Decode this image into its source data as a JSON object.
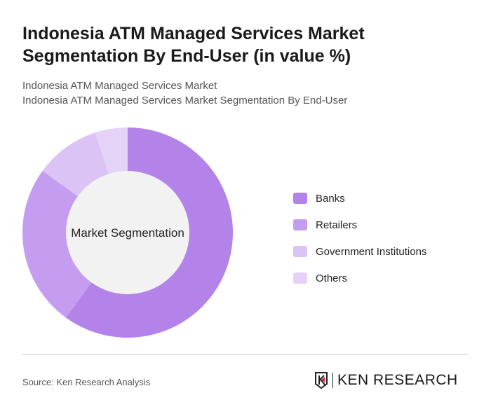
{
  "title": "Indonesia ATM Managed Services Market Segmentation By End-User (in value %)",
  "subtitle1": "Indonesia ATM Managed Services Market",
  "subtitle2": "Indonesia ATM Managed Services Market Segmentation By End-User",
  "source": "Source: Ken Research Analysis",
  "logo_text": "KEN RESEARCH",
  "chart_data": {
    "type": "pie",
    "variant": "donut",
    "center_label": "Market Segmentation",
    "legend_position": "right",
    "categories": [
      "Banks",
      "Retailers",
      "Government Institutions",
      "Others"
    ],
    "values": [
      60,
      25,
      10,
      5
    ],
    "colors": [
      "#b383ea",
      "#c59df0",
      "#dbc3f5",
      "#e5d3f7"
    ]
  }
}
